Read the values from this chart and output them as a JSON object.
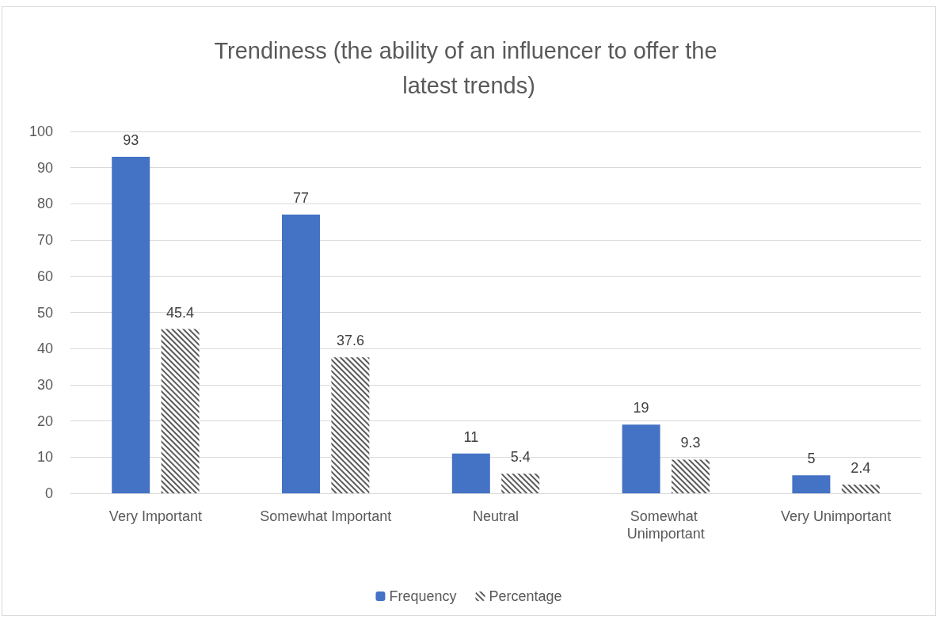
{
  "chart_data": {
    "type": "bar",
    "title": "Trendiness (the ability of an influencer to offer the latest trends)",
    "categories": [
      "Very Important",
      "Somewhat Important",
      "Neutral",
      "Somewhat Unimportant",
      "Very Unimportant"
    ],
    "series": [
      {
        "name": "Frequency",
        "color": "#4472c4",
        "values": [
          93,
          77,
          11,
          19,
          5
        ]
      },
      {
        "name": "Percentage",
        "color": "#595959",
        "values": [
          45.4,
          37.6,
          5.4,
          9.3,
          2.4
        ]
      }
    ],
    "ylim": [
      0,
      100
    ],
    "yticks": [
      0,
      10,
      20,
      30,
      40,
      50,
      60,
      70,
      80,
      90,
      100
    ],
    "grid": "y",
    "legend": "bottom",
    "data_labels": true
  }
}
